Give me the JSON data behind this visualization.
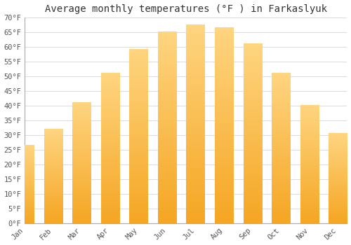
{
  "months": [
    "Jan",
    "Feb",
    "Mar",
    "Apr",
    "May",
    "Jun",
    "Jul",
    "Aug",
    "Sep",
    "Oct",
    "Nov",
    "Dec"
  ],
  "values": [
    26.5,
    32.0,
    41.0,
    51.0,
    59.0,
    65.0,
    67.5,
    66.5,
    61.0,
    51.0,
    40.0,
    30.5
  ],
  "bar_color_bottom": "#F5A623",
  "bar_color_top": "#FFD580",
  "title": "Average monthly temperatures (°F ) in Farkaslyuk",
  "ylim": [
    0,
    70
  ],
  "ytick_step": 5,
  "background_color": "#ffffff",
  "grid_color": "#dddddd",
  "title_fontsize": 10,
  "tick_fontsize": 7.5,
  "font_family": "monospace"
}
